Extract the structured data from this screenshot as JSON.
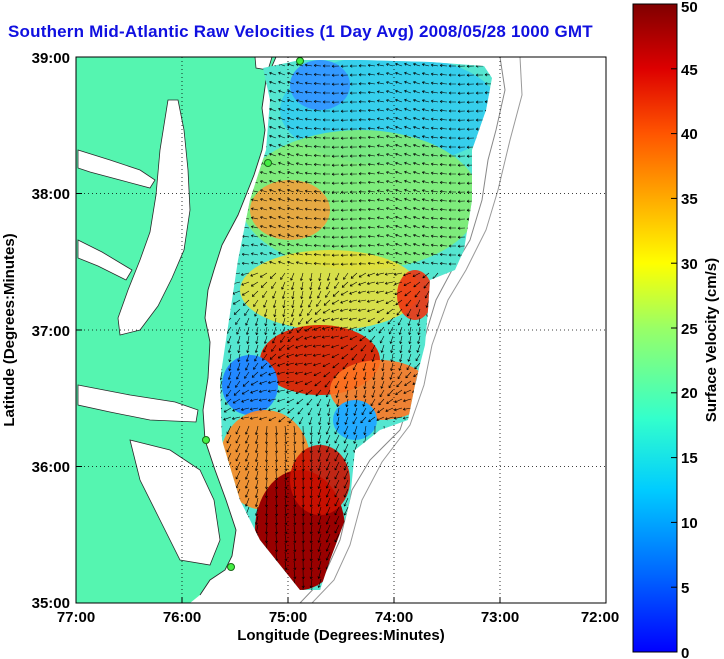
{
  "title": "Southern Mid-Atlantic Raw Velocities (1 Day Avg) 2008/05/28 1000 GMT",
  "axes": {
    "xlabel": "Longitude (Degrees:Minutes)",
    "ylabel": "Latitude (Degrees:Minutes)",
    "x_ticks": [
      "77:00",
      "76:00",
      "75:00",
      "74:00",
      "73:00",
      "72:00"
    ],
    "y_ticks": [
      "39:00",
      "38:00",
      "37:00",
      "36:00",
      "35:00"
    ]
  },
  "colorbar": {
    "label": "Surface Velocity (cm/s)",
    "ticks": [
      "0",
      "5",
      "10",
      "15",
      "20",
      "25",
      "30",
      "35",
      "40",
      "45",
      "50"
    ],
    "range": [
      0,
      50
    ]
  },
  "colors": {
    "land": "#55f5b0",
    "water": "#ffffff",
    "title": "#1010e0",
    "station": "#44ee44",
    "arrow": "#000000"
  },
  "chart_data": {
    "type": "heatmap",
    "title": "Southern Mid-Atlantic Raw Velocities (1 Day Avg) 2008/05/28 1000 GMT",
    "xlabel": "Longitude (Degrees:Minutes)",
    "ylabel": "Latitude (Degrees:Minutes)",
    "xlim": [
      -77,
      -72
    ],
    "ylim": [
      35,
      39
    ],
    "grid": true,
    "colorbar_label": "Surface Velocity (cm/s)",
    "colorbar_range": [
      0,
      50
    ]
  }
}
